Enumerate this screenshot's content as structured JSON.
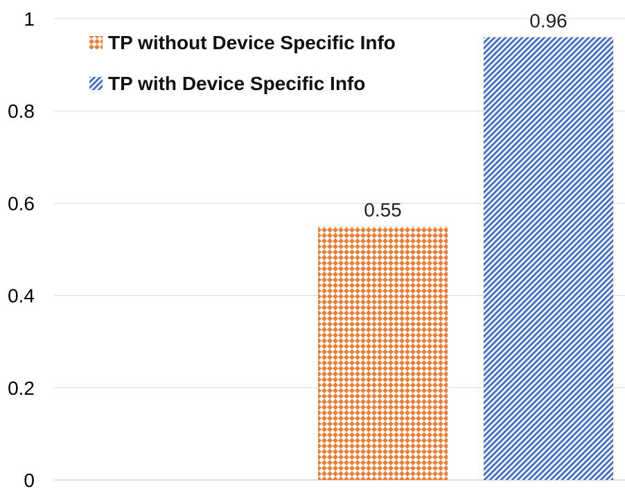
{
  "chart_data": {
    "type": "bar",
    "title": "",
    "xlabel": "",
    "ylabel": "",
    "ylim": [
      0,
      1
    ],
    "yticks": [
      "0",
      "0.2",
      "0.4",
      "0.6",
      "0.8",
      "1"
    ],
    "grid": true,
    "legend_position": "top-left",
    "series": [
      {
        "name": "TP without Device Specific Info",
        "value": 0.55,
        "label": "0.55",
        "color": "#ED7D31",
        "pattern": "diamond-checker"
      },
      {
        "name": "TP with Device Specific Info",
        "value": 0.96,
        "label": "0.96",
        "color": "#4472C4",
        "pattern": "diagonal-stripes"
      }
    ]
  }
}
